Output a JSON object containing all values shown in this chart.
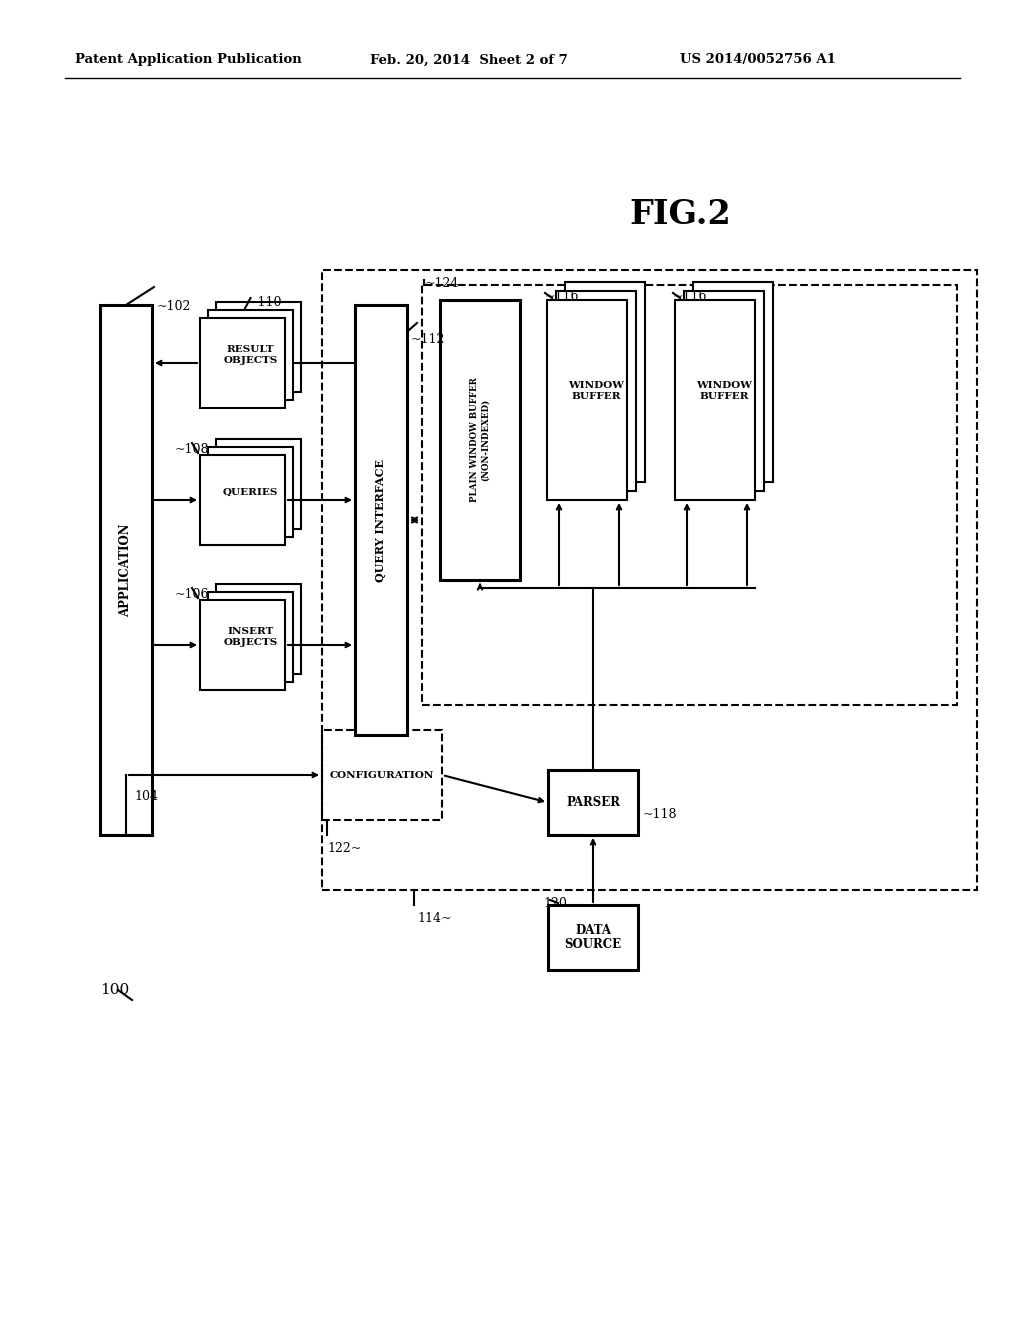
{
  "title_left": "Patent Application Publication",
  "title_mid": "Feb. 20, 2014  Sheet 2 of 7",
  "title_right": "US 2014/0052756 A1",
  "fig_label": "FIG.2",
  "bg_color": "#ffffff",
  "box_color": "#000000",
  "text_color": "#000000"
}
